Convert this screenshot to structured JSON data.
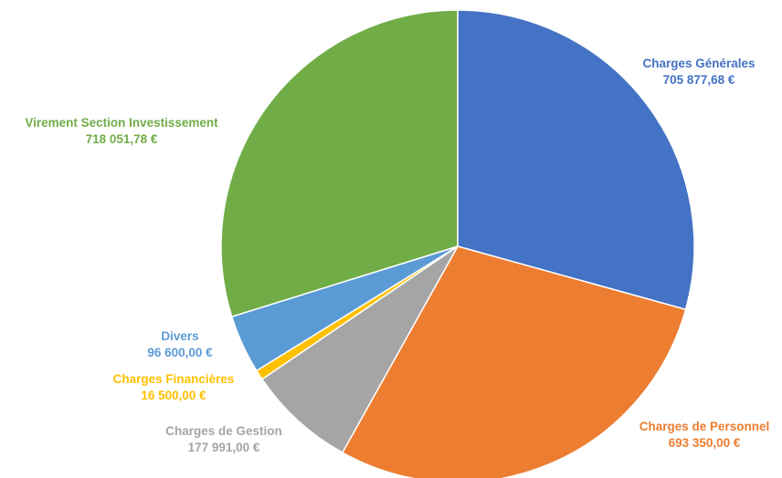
{
  "chart_data": {
    "type": "pie",
    "title": "",
    "start_angle_deg": 0,
    "direction": "clockwise",
    "slices": [
      {
        "label": "Charges Générales",
        "value": 705877.68,
        "value_label": "705 877,68 €",
        "color": "#4472C4"
      },
      {
        "label": "Charges de Personnel",
        "value": 693350.0,
        "value_label": "693 350,00 €",
        "color": "#ED7D31"
      },
      {
        "label": "Charges de Gestion",
        "value": 177991.0,
        "value_label": "177 991,00 €",
        "color": "#A5A5A5"
      },
      {
        "label": "Charges Financières",
        "value": 16500.0,
        "value_label": "16 500,00 €",
        "color": "#FFC000"
      },
      {
        "label": "Divers",
        "value": 96600.0,
        "value_label": "96 600,00 €",
        "color": "#5B9BD5"
      },
      {
        "label": "Virement Section Investissement",
        "value": 718051.78,
        "value_label": "718 051,78 €",
        "color": "#70AD47"
      }
    ]
  }
}
